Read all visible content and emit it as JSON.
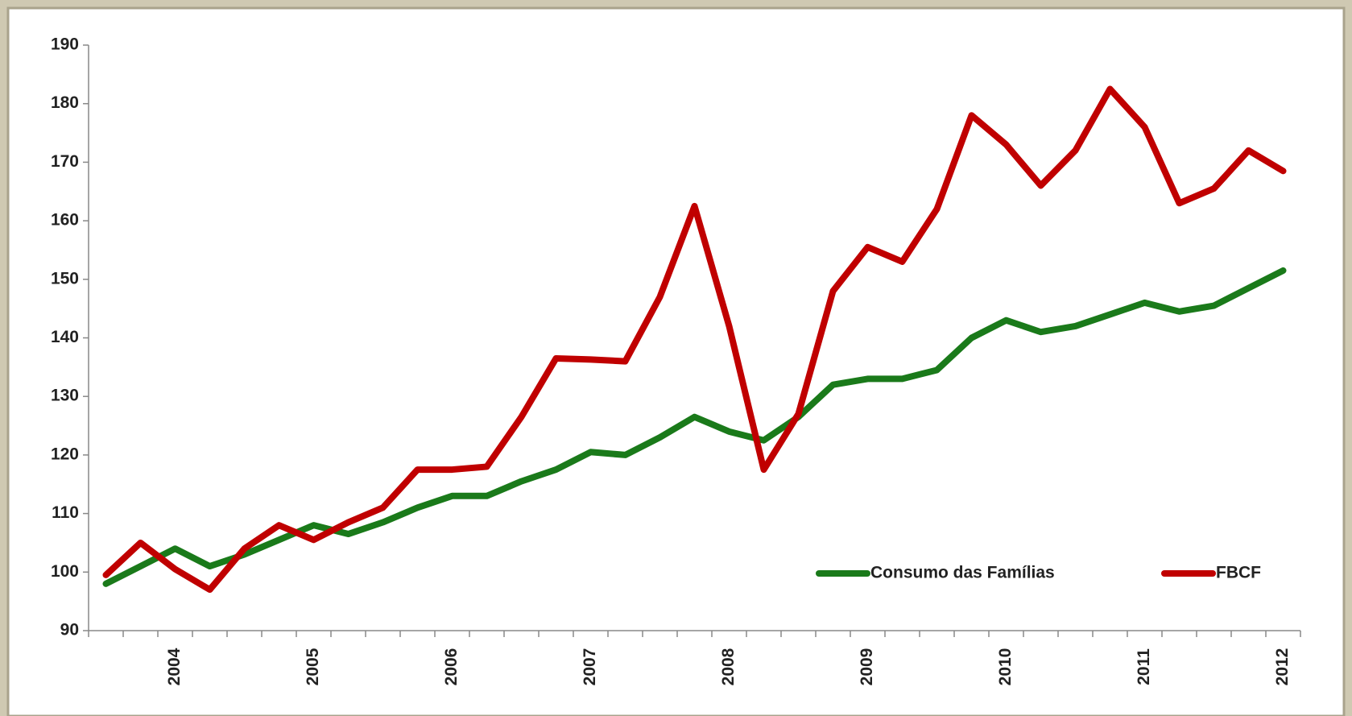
{
  "chart_data": {
    "type": "line",
    "categories": [
      null,
      null,
      "2004",
      null,
      null,
      null,
      "2005",
      null,
      null,
      null,
      "2006",
      null,
      null,
      null,
      "2007",
      null,
      null,
      null,
      "2008",
      null,
      null,
      null,
      "2009",
      null,
      null,
      null,
      "2010",
      null,
      null,
      null,
      "2011",
      null,
      null,
      null,
      "2012"
    ],
    "series": [
      {
        "name": "Consumo das Famílias",
        "color": "#1a7a1a",
        "values": [
          98,
          101,
          104,
          101,
          103,
          105.5,
          108,
          106.5,
          108.5,
          111,
          113,
          113,
          115.5,
          117.5,
          120.5,
          120,
          123,
          126.5,
          124,
          122.5,
          126.5,
          132,
          133,
          133,
          134.5,
          140,
          143,
          141,
          142,
          144,
          146,
          144.5,
          145.5,
          148.5,
          151.5
        ]
      },
      {
        "name": "FBCF",
        "color": "#c00000",
        "values": [
          99.5,
          105,
          100.5,
          97,
          104,
          108,
          105.5,
          108.5,
          111,
          117.5,
          117.5,
          118,
          126.5,
          136.5,
          136.3,
          136,
          147,
          162.5,
          142,
          117.5,
          127,
          148,
          155.5,
          153,
          162,
          178,
          173,
          166,
          172,
          182.5,
          176,
          163,
          165.5,
          172,
          168.5
        ]
      }
    ],
    "ylim": [
      90,
      190
    ],
    "yticks": [
      90,
      100,
      110,
      120,
      130,
      140,
      150,
      160,
      170,
      180,
      190
    ],
    "grid": false,
    "legend": "lower right"
  }
}
